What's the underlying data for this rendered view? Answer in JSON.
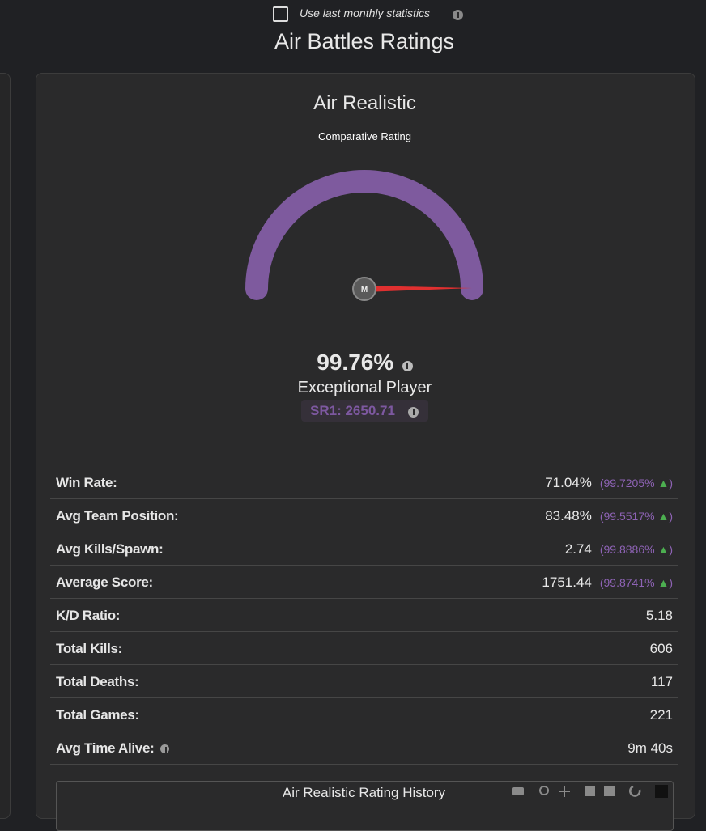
{
  "header": {
    "checkbox_label": "Use last monthly statistics",
    "title": "Air Battles Ratings"
  },
  "card": {
    "title": "Air Realistic",
    "gauge": {
      "title": "Comparative Rating",
      "needle_label": "M",
      "rating": {
        "value": 99.76,
        "label": "99.76%"
      }
    },
    "rank": "Exceptional Player",
    "sr": "SR1: 2650.71",
    "stats": [
      {
        "label": "Win Rate:",
        "value": "71.04%",
        "percentile": "(99.7205% ▲)"
      },
      {
        "label": "Avg Team Position:",
        "value": "83.48%",
        "percentile": "(99.5517% ▲)"
      },
      {
        "label": "Avg Kills/Spawn:",
        "value": "2.74",
        "percentile": "(99.8886% ▲)"
      },
      {
        "label": "Average Score:",
        "value": "1751.44",
        "percentile": "(99.8741% ▲)"
      },
      {
        "label": "K/D Ratio:",
        "value": "5.18"
      },
      {
        "label": "Total Kills:",
        "value": "606"
      },
      {
        "label": "Total Deaths:",
        "value": "117"
      },
      {
        "label": "Total Games:",
        "value": "221"
      },
      {
        "label": "Avg Time Alive:",
        "value": "9m 40s",
        "info": true
      }
    ],
    "history_title": "Air Realistic Rating History"
  }
}
